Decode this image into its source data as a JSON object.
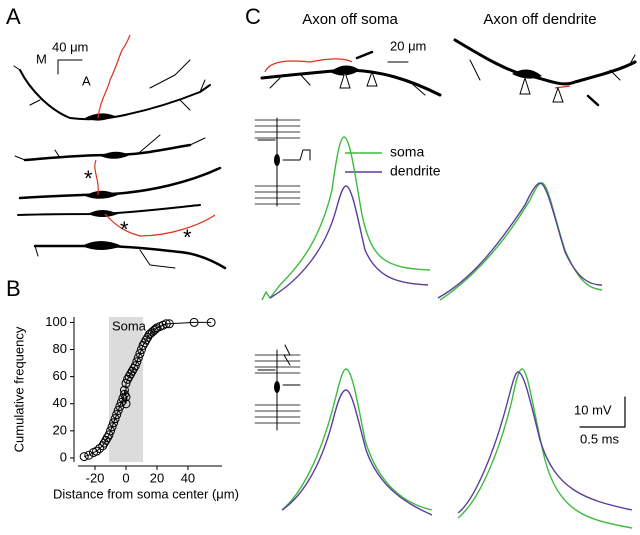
{
  "panels": {
    "a": {
      "label": "A",
      "orientation": [
        "M",
        "A"
      ],
      "scale": "40 μm",
      "asterisks": [
        "*",
        "*",
        "*"
      ]
    },
    "c": {
      "label": "C",
      "titles": [
        "Axon off soma",
        "Axon off dendrite"
      ],
      "scale": "20 μm",
      "legend": [
        {
          "name": "soma",
          "color": "#3dbb3d"
        },
        {
          "name": "dendrite",
          "color": "#5b3d9e"
        }
      ],
      "scale_bars": [
        "10 mV",
        "0.5 ms"
      ]
    }
  },
  "chart_data": {
    "type": "line",
    "panel_label": "B",
    "xlabel": "Distance from soma center (μm)",
    "ylabel": "Cumulative frequency",
    "x": [
      -27,
      -24,
      -21,
      -19,
      -17,
      -15,
      -14,
      -13,
      -12,
      -11,
      -10,
      -9,
      -8,
      -7,
      -6,
      -5,
      -4,
      -3,
      -2,
      -1,
      -1,
      0,
      0,
      0,
      1,
      2,
      3,
      4,
      5,
      6,
      7,
      8,
      9,
      10,
      11,
      12,
      13,
      14,
      15,
      16,
      17,
      18,
      19,
      20,
      22,
      24,
      26,
      28,
      44,
      55
    ],
    "values": [
      1,
      2,
      4,
      5,
      7,
      9,
      11,
      13,
      15,
      17,
      20,
      23,
      26,
      29,
      32,
      35,
      38,
      41,
      44,
      47,
      50,
      45,
      40,
      55,
      58,
      60,
      62,
      64,
      66,
      68,
      71,
      74,
      77,
      80,
      83,
      85,
      87,
      89,
      91,
      92,
      93,
      94,
      95,
      96,
      97,
      98,
      99,
      99,
      100,
      100
    ],
    "color": "#000000",
    "xlim": [
      -31,
      62
    ],
    "ylim": [
      -3,
      104
    ],
    "xticks": [
      -20,
      0,
      20,
      40
    ],
    "yticks": [
      0,
      20,
      40,
      60,
      80,
      100
    ],
    "shaded_region": {
      "label": "Soma",
      "x": [
        -11,
        11
      ],
      "color": "#dcdcdc"
    }
  }
}
